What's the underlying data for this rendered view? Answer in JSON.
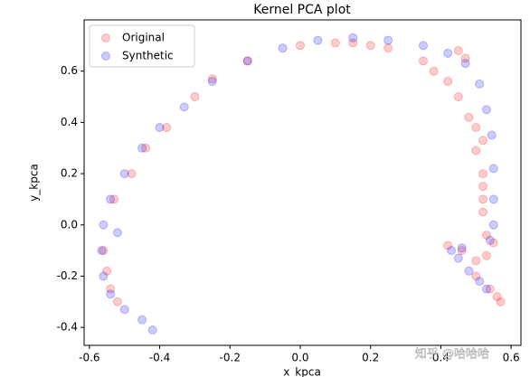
{
  "chart_data": {
    "type": "scatter",
    "title": "Kernel PCA plot",
    "xlabel": "x_kpca",
    "ylabel": "y_kpca",
    "xlim": [
      -0.615,
      0.628
    ],
    "ylim": [
      -0.47,
      0.8
    ],
    "xticks": [
      -0.6,
      -0.4,
      -0.2,
      {
        "value": 0,
        "label": "0.0"
      },
      0.2,
      0.4,
      0.6
    ],
    "yticks": [
      -0.4,
      -0.2,
      {
        "value": 0,
        "label": "0.0"
      },
      0.2,
      0.4,
      0.6
    ],
    "legend": "upper-left",
    "watermark": "知乎 @哈哈哈",
    "series": [
      {
        "name": "Original",
        "color": "#ff0000",
        "x": [
          -0.52,
          -0.54,
          -0.55,
          -0.56,
          -0.53,
          -0.48,
          -0.44,
          -0.38,
          -0.3,
          -0.25,
          -0.15,
          0.0,
          0.1,
          0.15,
          0.2,
          0.25,
          0.35,
          0.38,
          0.42,
          0.45,
          0.48,
          0.5,
          0.52,
          0.5,
          0.52,
          0.52,
          0.52,
          0.52,
          0.53,
          0.55,
          0.42,
          0.46,
          0.5,
          0.53,
          0.5,
          0.54,
          0.56,
          0.57,
          0.45,
          0.47
        ],
        "y": [
          -0.3,
          -0.25,
          -0.18,
          -0.1,
          0.1,
          0.2,
          0.3,
          0.38,
          0.5,
          0.57,
          0.64,
          0.7,
          0.71,
          0.71,
          0.7,
          0.69,
          0.64,
          0.6,
          0.56,
          0.5,
          0.42,
          0.38,
          0.33,
          0.29,
          0.2,
          0.15,
          0.1,
          0.05,
          -0.04,
          -0.07,
          -0.08,
          -0.1,
          -0.14,
          -0.12,
          -0.2,
          -0.25,
          -0.28,
          -0.3,
          0.68,
          0.65
        ]
      },
      {
        "name": "Synthetic",
        "color": "#0000ff",
        "x": [
          -0.42,
          -0.45,
          -0.5,
          -0.54,
          -0.56,
          -0.565,
          -0.56,
          -0.54,
          -0.5,
          -0.45,
          -0.4,
          -0.33,
          -0.25,
          -0.15,
          -0.05,
          0.05,
          0.15,
          0.25,
          0.35,
          0.42,
          0.47,
          0.51,
          0.53,
          0.545,
          0.55,
          0.55,
          0.55,
          0.54,
          0.46,
          0.43,
          0.45,
          0.48,
          0.51,
          0.53,
          -0.52
        ],
        "y": [
          -0.41,
          -0.37,
          -0.33,
          -0.27,
          -0.2,
          -0.1,
          0,
          0.1,
          0.2,
          0.3,
          0.38,
          0.46,
          0.56,
          0.64,
          0.69,
          0.72,
          0.73,
          0.72,
          0.7,
          0.67,
          0.63,
          0.55,
          0.45,
          0.35,
          0.22,
          0.1,
          0,
          -0.06,
          -0.09,
          -0.1,
          -0.13,
          -0.18,
          -0.22,
          -0.25,
          -0.03
        ]
      }
    ]
  }
}
